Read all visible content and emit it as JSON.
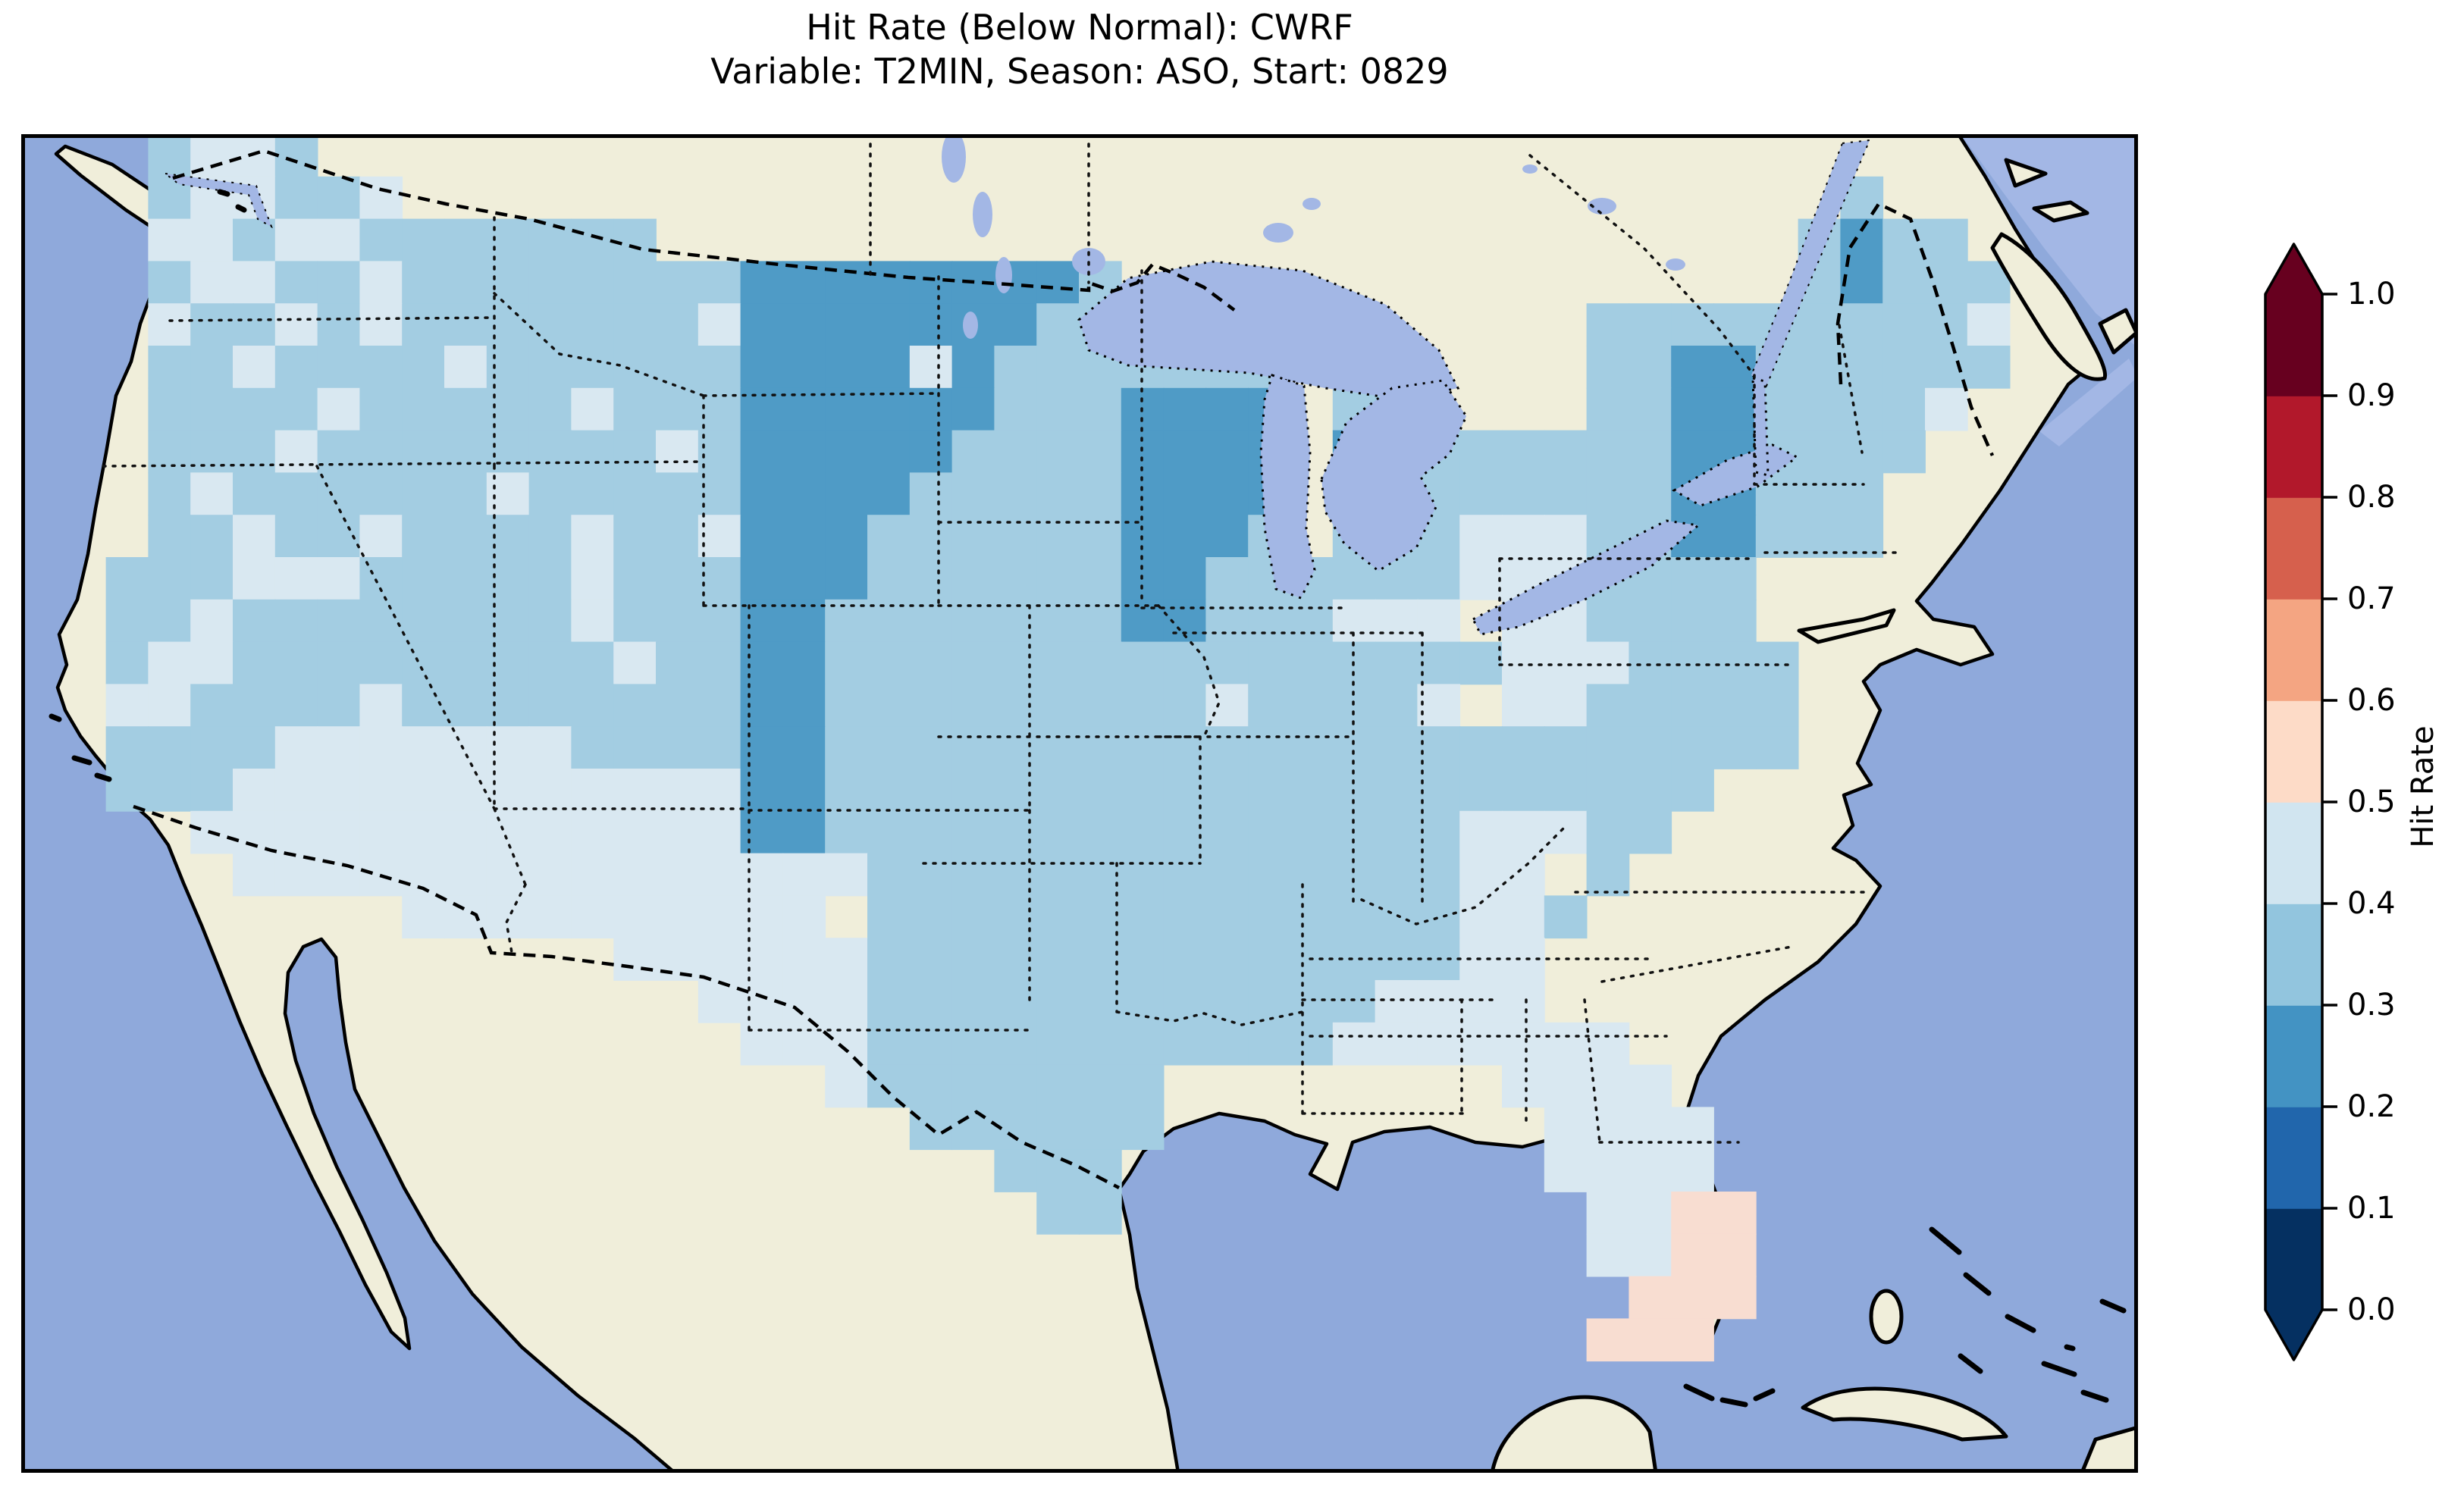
{
  "title": {
    "line1": "Hit Rate (Below Normal): CWRF",
    "line2": "Variable: T2MIN, Season: ASO, Start: 0829"
  },
  "colorbar": {
    "label": "Hit Rate",
    "ticks_top_to_bottom": [
      "1.0",
      "0.9",
      "0.8",
      "0.7",
      "0.6",
      "0.5",
      "0.4",
      "0.3",
      "0.2",
      "0.1",
      "0.0"
    ],
    "levels_low_to_high": [
      "#053061",
      "#2166ac",
      "#4393c3",
      "#92c5de",
      "#d1e5f0",
      "#fddbc7",
      "#f4a582",
      "#d6604d",
      "#b2182b",
      "#67001f"
    ],
    "extend_over_color": "#67001f",
    "extend_under_color": "#053061"
  },
  "map": {
    "ocean_color": "#8fa9db",
    "land_color": "#f0eeda",
    "lake_color": "#a3b7e5",
    "coast_color": "#000000",
    "grid": {
      "cols": 50,
      "rows": 31,
      "cell_size": 55.8,
      "cell_palette": {
        "a": "#4f9bc6",
        "b": "#a3cde2",
        "c": "#d9e8f1",
        "d": "#f8ddd1"
      },
      "rows_data": [
        "...bccb...........................................",
        "...bccbbc..................................b......",
        "...ccbccbbbbbbb...........................babb....",
        "...bccbbcbbbbbbbbaaaaaaaab................babbb...",
        "...cbbcbcbbbbbbbcaaaaaaabbccbb.......bbbbbbbbbc...",
        "...bbcbbbbcbbbbbbaaaacabbbbbbb.b.....bbaabbbbbb...",
        "...bbbbcbbbbbcbbbaaaaaabbbaaaa.bb....bbaabbbbc....",
        "...bbbcbbbbbbbbcbaaaaabbbbaaaa.aabbbbbbaabbbb.....",
        "...bcbbbbbbcbbbbbaaaabbbbbaaaa.abbbbbbbaabbb......",
        "...bbcbbcbbbbcbbcaaabbbbbbaaab.bbbcccbbaabbb......",
        "..bbbcccbbbbbcbbbaaabbbbbbaabbbbbbcccbbbb.........",
        "..bbcbbbbbbbbcbbbaabbbbbbbaabbbcccсccbbbb.........",
        "..bccbbbbbbbbbcbbaabbbbbbbbbbbbbbbbcccbbbb........",
        "..ccbbbbcbbbbbbbbaabbbbbbbbbcbbbbcсccbbbbb........",
        "..bbbbcccccccbbbbaabbbbbbbbbbbbbbbbbbbbbbb........",
        "..bbbccccccccccccaabbbbbbbbbbbbbbbbbbbbb..........",
        "....cccccccccccccaabbbbbbbbbbbbbbbcccbb...........",
        ".....cccccccccccccccbbbbbbbbbbbbbbccсb............",
        ".........ccccccccccсbbbbbbbbbbbbbbccb.............",
        "..............ccccccbbbbbbbbbbbbbbcc..............",
        "................ccccbbbbbbbbbbbbcccc..............",
        ".................cccbbbbbbbbbbbccccccc............",
        "...................cbbbbbbb........cccc...........",
        ".....................bbbbbb.........cccc..........",
        ".......................bbb..........cccc..........",
        "........................bb...........ccdd.........",
        ".....................................ccdd.........",
        "......................................ddd.........",
        ".....................................ddd..........",
        "..................................................",
        ".................................................."
      ]
    }
  },
  "chart_data": {
    "type": "heatmap",
    "title": "Hit Rate (Below Normal): CWRF",
    "subtitle": "Variable: T2MIN, Season: ASO, Start: 0829",
    "region": "Contiguous United States (lat/lon map, cartopy-style)",
    "colorbar_label": "Hit Rate",
    "colorbar_ticks": [
      0.0,
      0.1,
      0.2,
      0.3,
      0.4,
      0.5,
      0.6,
      0.7,
      0.8,
      0.9,
      1.0
    ],
    "colorbar_bin_colors": [
      "#053061",
      "#2166ac",
      "#4393c3",
      "#92c5de",
      "#d1e5f0",
      "#fddbc7",
      "#f4a582",
      "#d6604d",
      "#b2182b",
      "#67001f"
    ],
    "colorbar_extend": "both",
    "value_summary": {
      "0.2-0.3": "Dakotas–Nebraska–Kansas corridor, Wisconsin / Upper Michigan, northern Minnesota, northern Maine, Vermont–New Hampshire patch",
      "0.3-0.4": "most of CONUS (medium blue baseline)",
      "0.4-0.5": "Pacific Northwest coast, Wyoming, Arizona / New Mexico, west Texas, Ohio Valley, Carolinas patches, most of Florida",
      "0.5-0.6": "southern tip of Florida and adjacent cells (pale pink)"
    },
    "grid_encoding": "map.grid.rows_data strings; a=0.2-0.3, b=0.3-0.4, c=0.4-0.5, d=0.5-0.6, .=no data"
  }
}
